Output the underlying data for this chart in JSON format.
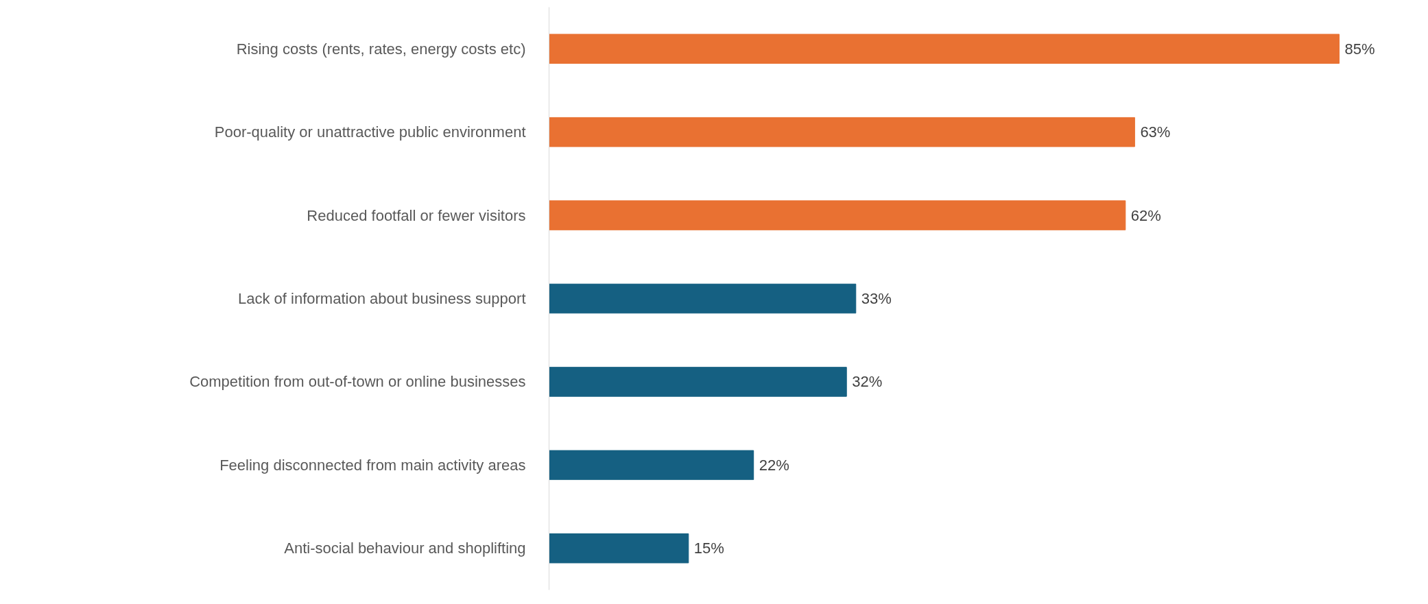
{
  "chart_data": {
    "type": "bar",
    "orientation": "horizontal",
    "categories": [
      "Rising costs (rents, rates, energy costs etc)",
      "Poor-quality or unattractive public environment",
      "Reduced footfall or fewer visitors",
      "Lack of information about business support",
      "Competition from out-of-town or online businesses",
      "Feeling disconnected from main activity areas",
      "Anti-social behaviour and shoplifting"
    ],
    "values": [
      85,
      63,
      62,
      33,
      32,
      22,
      15
    ],
    "value_labels": [
      "85%",
      "63%",
      "62%",
      "33%",
      "32%",
      "22%",
      "15%"
    ],
    "colors": [
      "#e97132",
      "#e97132",
      "#e97132",
      "#156082",
      "#156082",
      "#156082",
      "#156082"
    ],
    "grid": false,
    "tick_labels": "y"
  }
}
